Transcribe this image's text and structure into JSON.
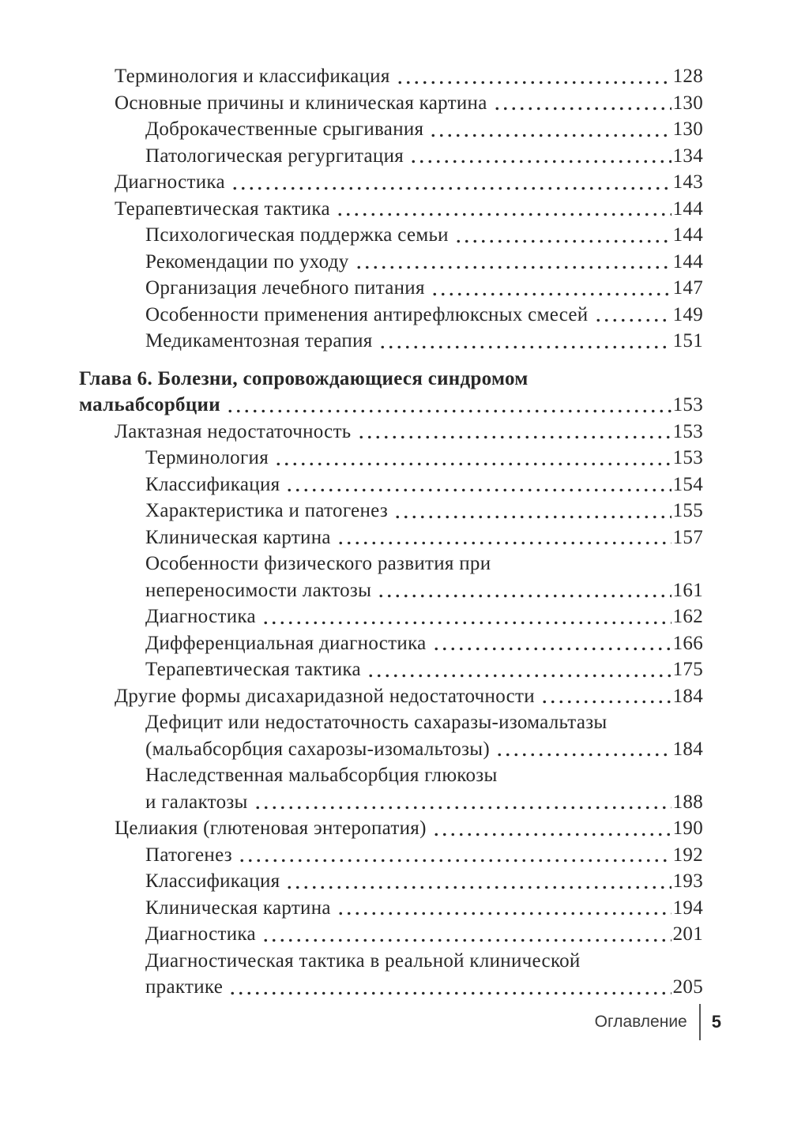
{
  "toc": {
    "lines": [
      {
        "text": "Терминология и классификация",
        "indent": 1,
        "page": "128",
        "bold": false,
        "gap_before": false
      },
      {
        "text": "Основные причины и клиническая картина",
        "indent": 1,
        "page": "130",
        "bold": false,
        "gap_before": false
      },
      {
        "text": "Доброкачественные срыгивания",
        "indent": 2,
        "page": "130",
        "bold": false,
        "gap_before": false
      },
      {
        "text": "Патологическая регургитация",
        "indent": 2,
        "page": "134",
        "bold": false,
        "gap_before": false
      },
      {
        "text": "Диагностика",
        "indent": 1,
        "page": "143",
        "bold": false,
        "gap_before": false
      },
      {
        "text": "Терапевтическая тактика",
        "indent": 1,
        "page": "144",
        "bold": false,
        "gap_before": false
      },
      {
        "text": "Психологическая поддержка семьи",
        "indent": 2,
        "page": "144",
        "bold": false,
        "gap_before": false
      },
      {
        "text": "Рекомендации по уходу",
        "indent": 2,
        "page": "144",
        "bold": false,
        "gap_before": false
      },
      {
        "text": "Организация лечебного питания",
        "indent": 2,
        "page": "147",
        "bold": false,
        "gap_before": false
      },
      {
        "text": "Особенности применения антирефлюксных смесей",
        "indent": 2,
        "page": "149",
        "bold": false,
        "gap_before": false
      },
      {
        "text": "Медикаментозная терапия",
        "indent": 2,
        "page": "151",
        "bold": false,
        "gap_before": false
      },
      {
        "text": "Глава 6. Болезни, сопровождающиеся синдромом",
        "indent": 0,
        "page": null,
        "bold": true,
        "gap_before": true
      },
      {
        "text": "мальабсорбции",
        "indent": 0,
        "page": "153",
        "bold": true,
        "gap_before": false
      },
      {
        "text": "Лактазная недостаточность",
        "indent": 1,
        "page": "153",
        "bold": false,
        "gap_before": false
      },
      {
        "text": "Терминология",
        "indent": 2,
        "page": "153",
        "bold": false,
        "gap_before": false
      },
      {
        "text": "Классификация",
        "indent": 2,
        "page": "154",
        "bold": false,
        "gap_before": false
      },
      {
        "text": "Характеристика и патогенез",
        "indent": 2,
        "page": "155",
        "bold": false,
        "gap_before": false
      },
      {
        "text": "Клиническая картина",
        "indent": 2,
        "page": "157",
        "bold": false,
        "gap_before": false
      },
      {
        "text": "Особенности физического развития при",
        "indent": 2,
        "page": null,
        "bold": false,
        "gap_before": false
      },
      {
        "text": "непереносимости лактозы",
        "indent": 2,
        "page": "161",
        "bold": false,
        "gap_before": false
      },
      {
        "text": "Диагностика",
        "indent": 2,
        "page": "162",
        "bold": false,
        "gap_before": false
      },
      {
        "text": "Дифференциальная диагностика",
        "indent": 2,
        "page": "166",
        "bold": false,
        "gap_before": false
      },
      {
        "text": "Терапевтическая тактика",
        "indent": 2,
        "page": "175",
        "bold": false,
        "gap_before": false
      },
      {
        "text": "Другие формы дисахаридазной недостаточности",
        "indent": 1,
        "page": "184",
        "bold": false,
        "gap_before": false
      },
      {
        "text": "Дефицит или недостаточность сахаразы-изомальтазы",
        "indent": 2,
        "page": null,
        "bold": false,
        "gap_before": false
      },
      {
        "text": "(мальабсорбция сахарозы-изомальтозы)",
        "indent": 2,
        "page": "184",
        "bold": false,
        "gap_before": false
      },
      {
        "text": "Наследственная мальабсорбция глюкозы",
        "indent": 2,
        "page": null,
        "bold": false,
        "gap_before": false
      },
      {
        "text": "и галактозы",
        "indent": 2,
        "page": "188",
        "bold": false,
        "gap_before": false
      },
      {
        "text": "Целиакия (глютеновая энтеропатия)",
        "indent": 1,
        "page": "190",
        "bold": false,
        "gap_before": false
      },
      {
        "text": "Патогенез",
        "indent": 2,
        "page": "192",
        "bold": false,
        "gap_before": false
      },
      {
        "text": "Классификация",
        "indent": 2,
        "page": "193",
        "bold": false,
        "gap_before": false
      },
      {
        "text": "Клиническая картина",
        "indent": 2,
        "page": "194",
        "bold": false,
        "gap_before": false
      },
      {
        "text": "Диагностика",
        "indent": 2,
        "page": "201",
        "bold": false,
        "gap_before": false
      },
      {
        "text": "Диагностическая тактика в реальной клинической",
        "indent": 2,
        "page": null,
        "bold": false,
        "gap_before": false
      },
      {
        "text": "практике",
        "indent": 2,
        "page": "205",
        "bold": false,
        "gap_before": false
      }
    ]
  },
  "footer": {
    "section_label": "Оглавление",
    "page_number": "5"
  },
  "colors": {
    "background": "#ffffff",
    "text": "#282828",
    "footer_text": "#3a3a3a",
    "separator": "#555555"
  }
}
